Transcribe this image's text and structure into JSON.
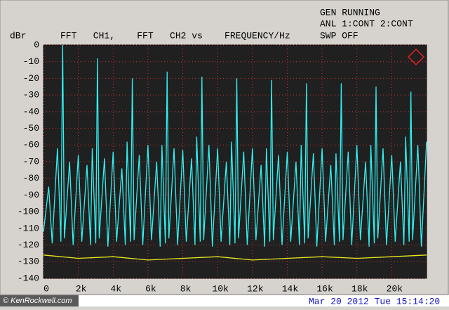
{
  "status": [
    "GEN RUNNING",
    "ANL 1:CONT 2:CONT",
    "SWP OFF"
  ],
  "footer": {
    "credit": "© KenRockwell.com",
    "timestamp": "Mar 20 2012 Tue 15:14:20"
  },
  "chart_data": {
    "type": "line",
    "title": "FFT   CH1,    FFT   CH2 vs    FREQUENCY/Hz",
    "y_label": "dBr",
    "xlim": [
      0,
      22000
    ],
    "xticks": [
      0,
      {
        "value": 2000,
        "label": "2k"
      },
      {
        "value": 4000,
        "label": "4k"
      },
      {
        "value": 6000,
        "label": "6k"
      },
      {
        "value": 8000,
        "label": "8k"
      },
      {
        "value": 10000,
        "label": "10k"
      },
      {
        "value": 12000,
        "label": "12k"
      },
      {
        "value": 14000,
        "label": "14k"
      },
      {
        "value": 16000,
        "label": "16k"
      },
      {
        "value": 18000,
        "label": "18k"
      },
      {
        "value": 20000,
        "label": "20k"
      }
    ],
    "ylim": [
      -140,
      0
    ],
    "yticks": [
      0,
      -10,
      -20,
      -30,
      -40,
      -50,
      -60,
      -70,
      -80,
      -90,
      -100,
      -110,
      -120,
      -130,
      -140
    ],
    "grid": true,
    "grid_color": "#c03030",
    "background": "#202020",
    "series": [
      {
        "color": "#30f0f0",
        "x": [
          0,
          300,
          500,
          800,
          1000,
          1100,
          1200,
          1500,
          1700,
          2000,
          2200,
          2500,
          2700,
          2800,
          3000,
          3100,
          3200,
          3500,
          3700,
          4000,
          4200,
          4500,
          4700,
          4800,
          5000,
          5100,
          5200,
          5500,
          5700,
          6000,
          6200,
          6500,
          6700,
          6800,
          7000,
          7100,
          7200,
          7500,
          7700,
          8000,
          8200,
          8500,
          8700,
          8800,
          9000,
          9100,
          9200,
          9500,
          9700,
          10000,
          10200,
          10500,
          10700,
          10800,
          11000,
          11100,
          11200,
          11500,
          11700,
          12000,
          12200,
          12500,
          12700,
          12800,
          13000,
          13100,
          13200,
          13500,
          13700,
          14000,
          14200,
          14500,
          14700,
          14800,
          15000,
          15100,
          15200,
          15500,
          15700,
          16000,
          16200,
          16500,
          16700,
          16800,
          17000,
          17100,
          17200,
          17500,
          17700,
          18000,
          18200,
          18500,
          18700,
          18800,
          19000,
          19100,
          19200,
          19500,
          19700,
          20000,
          20200,
          20500,
          20700,
          20800,
          21000,
          21100,
          21200,
          21500,
          21700,
          22000
        ],
        "values": [
          -112,
          -85,
          -119,
          -62,
          -118,
          0,
          -116,
          -70,
          -120,
          -66,
          -118,
          -72,
          -120,
          -62,
          -119,
          -8,
          -116,
          -68,
          -121,
          -64,
          -118,
          -74,
          -120,
          -58,
          -118,
          -20,
          -117,
          -66,
          -120,
          -60,
          -117,
          -70,
          -121,
          -60,
          -119,
          -16,
          -116,
          -62,
          -120,
          -63,
          -118,
          -68,
          -120,
          -55,
          -118,
          -19,
          -117,
          -60,
          -121,
          -62,
          -118,
          -70,
          -120,
          -58,
          -119,
          -20,
          -116,
          -64,
          -120,
          -62,
          -117,
          -72,
          -121,
          -62,
          -118,
          -21,
          -117,
          -66,
          -120,
          -64,
          -118,
          -70,
          -120,
          -60,
          -119,
          -23,
          -116,
          -65,
          -121,
          -62,
          -118,
          -72,
          -120,
          -65,
          -118,
          -23,
          -117,
          -64,
          -120,
          -60,
          -117,
          -70,
          -121,
          -60,
          -119,
          -25,
          -116,
          -62,
          -120,
          -66,
          -118,
          -70,
          -120,
          -55,
          -118,
          -28,
          -117,
          -60,
          -121,
          -58
        ]
      },
      {
        "color": "#e8e820",
        "x": [
          0,
          2000,
          4000,
          6000,
          8000,
          10000,
          12000,
          14000,
          16000,
          18000,
          20000,
          22000
        ],
        "values": [
          -126,
          -128,
          -127,
          -129,
          -128,
          -127,
          -129,
          -128,
          -127,
          -128,
          -127,
          -126
        ]
      }
    ]
  }
}
